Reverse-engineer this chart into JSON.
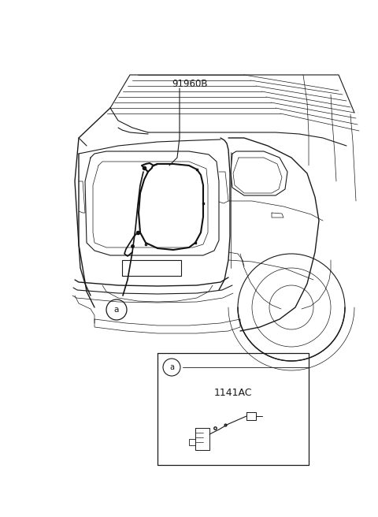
{
  "bg_color": "#ffffff",
  "line_color": "#1a1a1a",
  "label_91960B": "91960B",
  "label_a": "a",
  "label_1141AC": "1141AC",
  "annotation_fontsize": 8.5,
  "small_label_fontsize": 7.5,
  "dpi": 100,
  "figw": 4.8,
  "figh": 6.56
}
